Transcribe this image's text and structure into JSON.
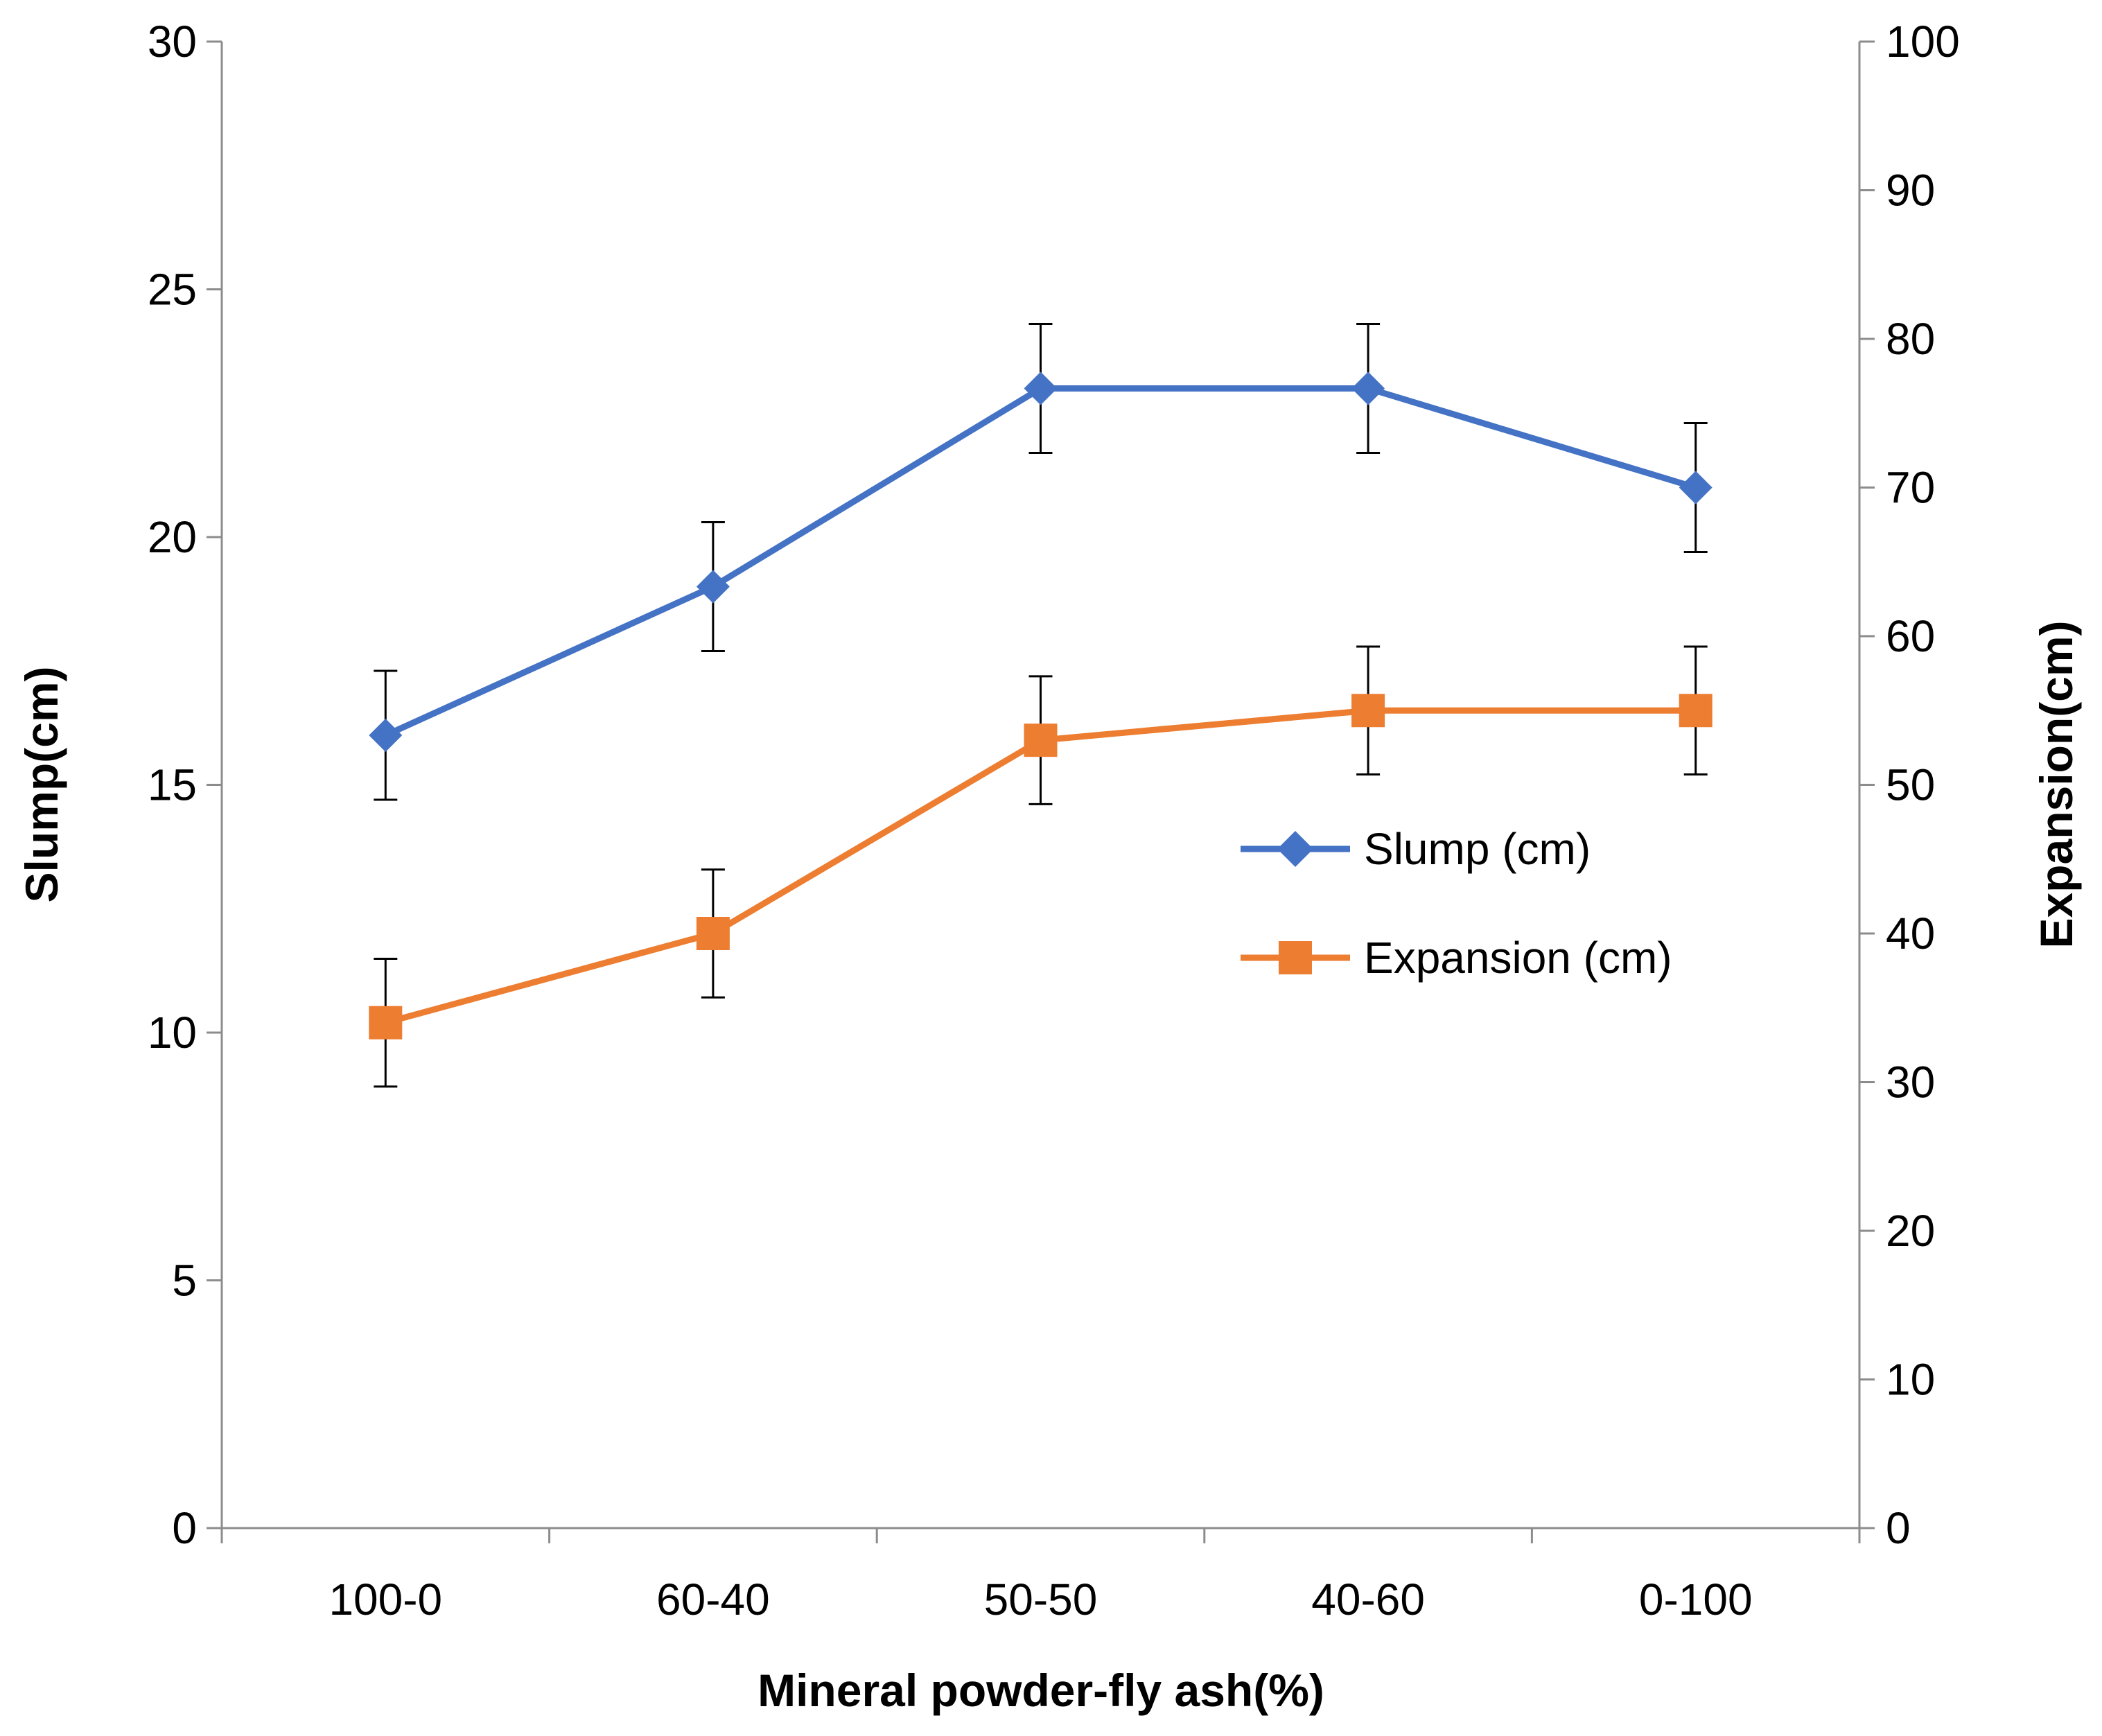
{
  "chart_data": {
    "type": "line",
    "title": "",
    "xlabel": "Mineral powder-fly ash(%)",
    "ylabel": "Slump(cm)",
    "y2label": "Expansion(cm)",
    "categories": [
      "100-0",
      "60-40",
      "50-50",
      "40-60",
      "0-100"
    ],
    "ylim": [
      0,
      30
    ],
    "yticks": [
      0,
      5,
      10,
      15,
      20,
      25,
      30
    ],
    "y2lim": [
      0,
      100
    ],
    "y2ticks": [
      0,
      10,
      20,
      30,
      40,
      50,
      60,
      70,
      80,
      90,
      100
    ],
    "grid": false,
    "legend_position": "center-right",
    "series": [
      {
        "name": "Slump (cm)",
        "axis": "left",
        "marker": "diamond",
        "color": "#4472C4",
        "values": [
          16,
          19,
          23,
          23,
          21
        ],
        "error": [
          1.3,
          1.3,
          1.3,
          1.3,
          1.3
        ]
      },
      {
        "name": "Expansion (cm)",
        "axis": "right",
        "marker": "square",
        "color": "#ED7D31",
        "values": [
          34,
          40,
          53,
          55,
          55
        ],
        "error": [
          4.3,
          4.3,
          4.3,
          4.3,
          4.3
        ]
      }
    ]
  }
}
